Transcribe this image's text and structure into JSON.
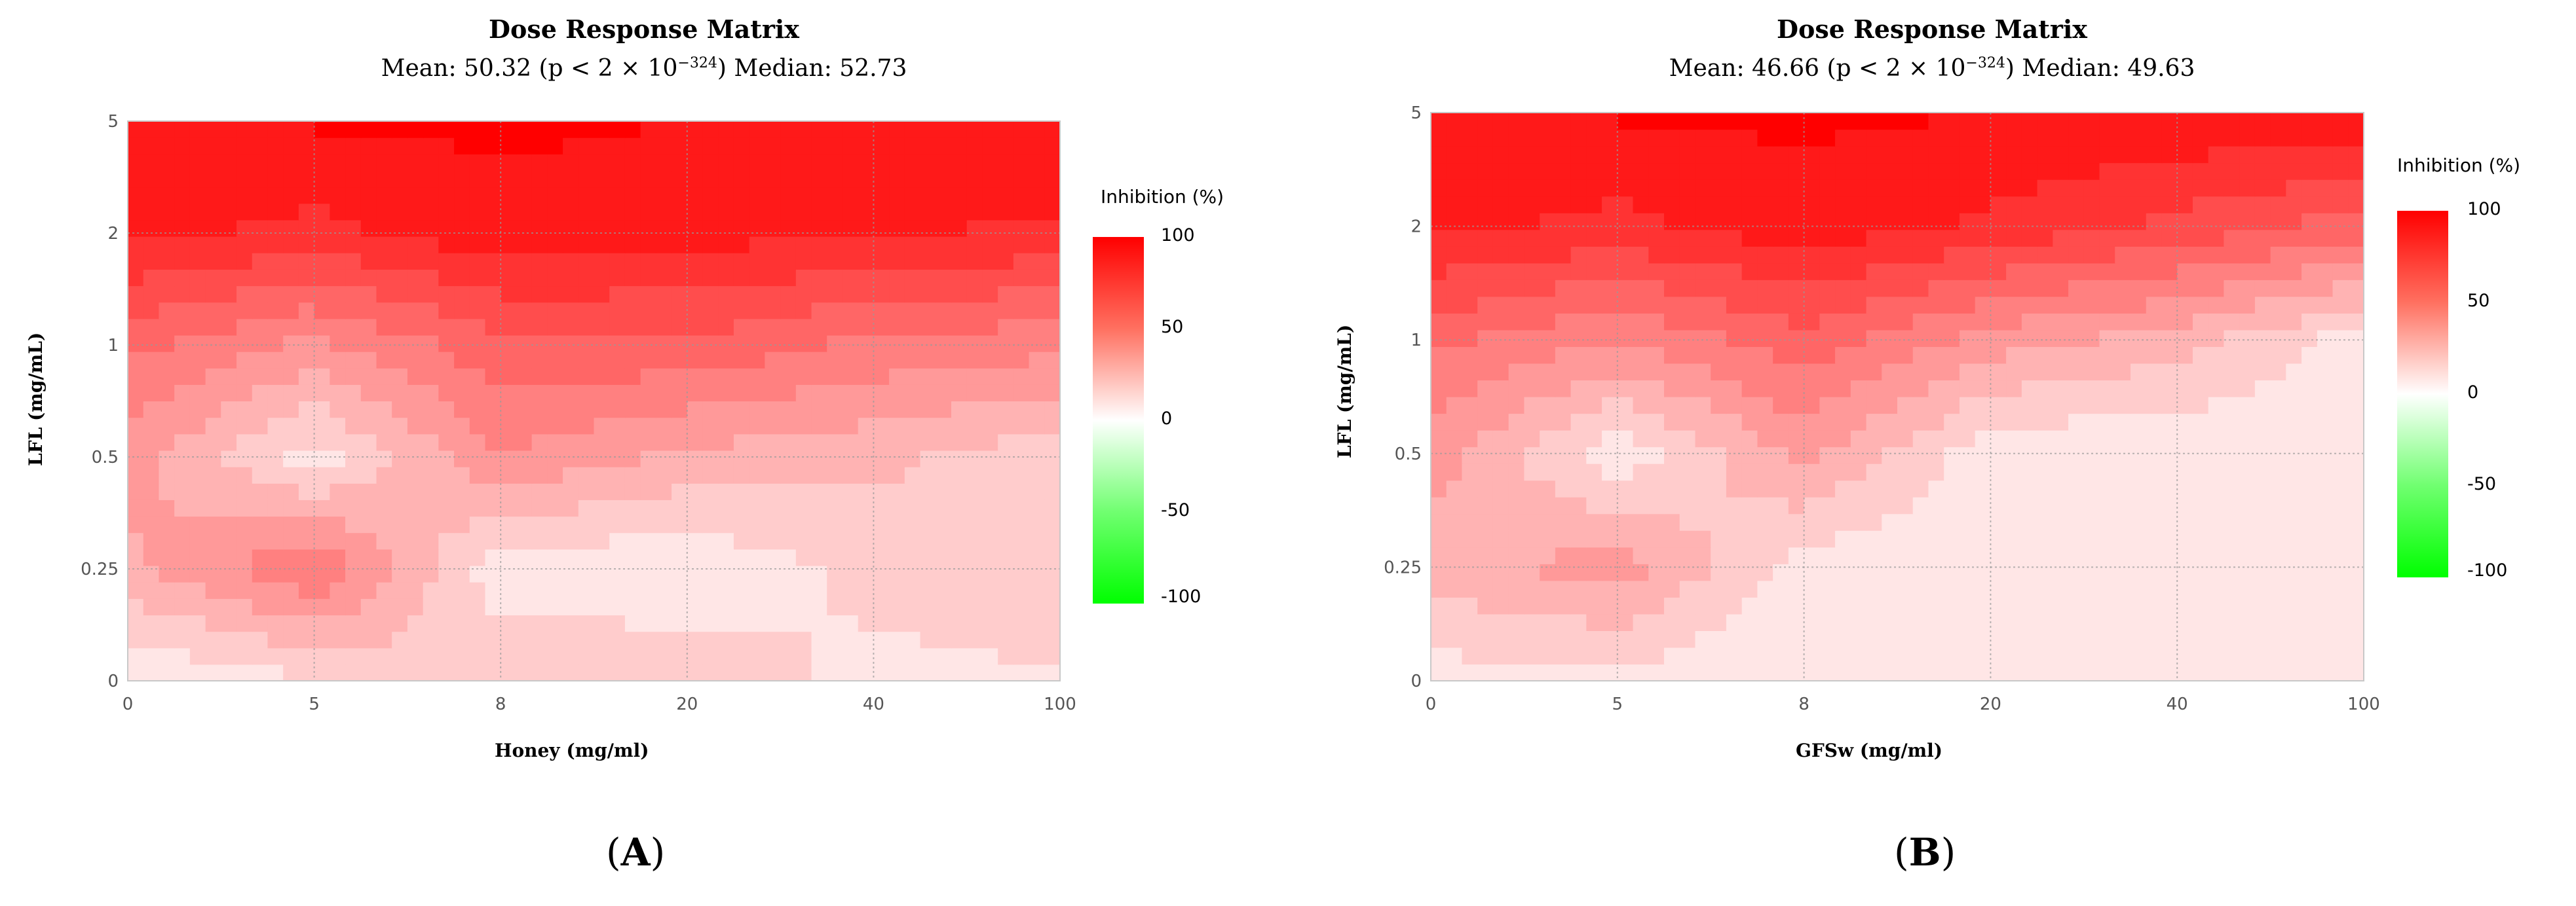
{
  "panels": [
    {
      "label": "A",
      "title": "Dose Response Matrix",
      "subtitle_pre": "Mean: 50.32 (p < 2 × 10",
      "subtitle_exp": "−324",
      "subtitle_post": ") Median: 52.73",
      "xlabel": "Honey (mg/ml)",
      "ylabel": "LFL (mg/mL)",
      "colorbar": {
        "title": "Inhibition (%)",
        "ticks": [
          "100",
          "50",
          "0",
          "-50",
          "-100"
        ]
      }
    },
    {
      "label": "B",
      "title": "Dose Response Matrix",
      "subtitle_pre": "Mean: 46.66 (p < 2 × 10",
      "subtitle_exp": "−324",
      "subtitle_post": ") Median: 49.63",
      "xlabel": "GFSw (mg/ml)",
      "ylabel": "LFL (mg/mL)",
      "colorbar": {
        "title": "Inhibition (%)",
        "ticks": [
          "100",
          "50",
          "0",
          "-50",
          "-100"
        ]
      }
    }
  ],
  "chart_data": [
    {
      "type": "heatmap",
      "title": "Dose Response Matrix",
      "subtitle": "Mean: 50.32 (p < 2 × 10^-324) Median: 52.73",
      "xlabel": "Honey (mg/ml)",
      "ylabel": "LFL (mg/mL)",
      "x_categories": [
        "0",
        "5",
        "8",
        "20",
        "40",
        "100"
      ],
      "y_categories": [
        "0",
        "0.25",
        "0.5",
        "1",
        "2",
        "5"
      ],
      "colorbar_label": "Inhibition (%)",
      "color_range": [
        -100,
        100
      ],
      "values": [
        [
          5,
          14,
          25,
          22,
          12,
          14
        ],
        [
          32,
          55,
          8,
          7,
          18,
          22
        ],
        [
          40,
          10,
          45,
          32,
          28,
          18
        ],
        [
          58,
          42,
          62,
          63,
          52,
          48
        ],
        [
          88,
          82,
          91,
          89,
          86,
          83
        ],
        [
          93,
          96,
          97,
          95,
          94,
          94
        ]
      ]
    },
    {
      "type": "heatmap",
      "title": "Dose Response Matrix",
      "subtitle": "Mean: 46.66 (p < 2 × 10^-324) Median: 49.63",
      "xlabel": "GFSw (mg/ml)",
      "ylabel": "LFL (mg/mL)",
      "x_categories": [
        "0",
        "5",
        "8",
        "20",
        "40",
        "100"
      ],
      "y_categories": [
        "0",
        "0.25",
        "0.5",
        "1",
        "2",
        "5"
      ],
      "colorbar_label": "Inhibition (%)",
      "color_range": [
        -100,
        100
      ],
      "values": [
        [
          10,
          11,
          5,
          6,
          14,
          12
        ],
        [
          30,
          40,
          10,
          6,
          9,
          9
        ],
        [
          40,
          8,
          38,
          8,
          6,
          5
        ],
        [
          58,
          45,
          62,
          40,
          30,
          10
        ],
        [
          88,
          82,
          91,
          83,
          72,
          60
        ],
        [
          93,
          96,
          97,
          95,
          94,
          94
        ]
      ]
    }
  ]
}
